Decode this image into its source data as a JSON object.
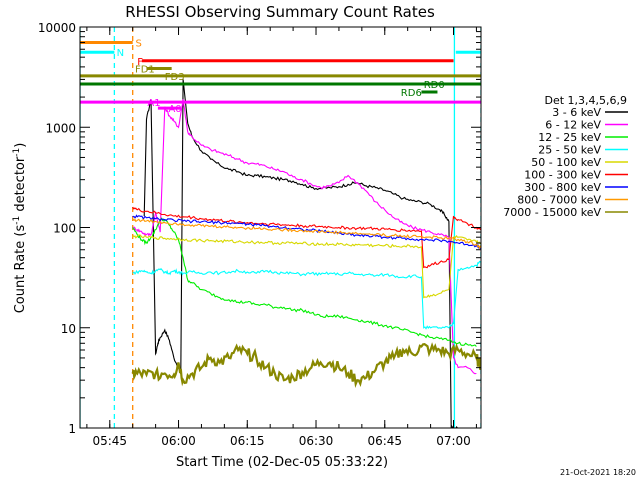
{
  "chart_data": {
    "type": "line",
    "title": "RHESSI Observing Summary Count Rates",
    "xlabel": "Start Time (02-Dec-05 05:33:22)",
    "ylabel_main": "Count Rate (s",
    "ylabel_sup1": "-1",
    "ylabel_mid": " detector",
    "ylabel_sup2": "-1",
    "ylabel_end": ")",
    "x_range_minutes": [
      5.5,
      93
    ],
    "yscale": "log",
    "ylim": [
      1,
      10000
    ],
    "x_ticks": [
      {
        "label": "05:45",
        "t": 12
      },
      {
        "label": "06:00",
        "t": 27
      },
      {
        "label": "06:15",
        "t": 42
      },
      {
        "label": "06:30",
        "t": 57
      },
      {
        "label": "06:45",
        "t": 72
      },
      {
        "label": "07:00",
        "t": 87
      }
    ],
    "y_ticks": [
      {
        "label": "1",
        "v": 1
      },
      {
        "label": "10",
        "v": 10
      },
      {
        "label": "100",
        "v": 100
      },
      {
        "label": "1000",
        "v": 1000
      },
      {
        "label": "10000",
        "v": 10000
      }
    ],
    "legend": {
      "title": "Det 1,3,4,5,6,9",
      "entries": [
        {
          "label": "3 - 6 keV",
          "color": "#000000"
        },
        {
          "label": "6 - 12 keV",
          "color": "#ff00ff"
        },
        {
          "label": "12 - 25 keV",
          "color": "#00ee00"
        },
        {
          "label": "25 - 50 keV",
          "color": "#00ffff"
        },
        {
          "label": "50 - 100 keV",
          "color": "#d8d800"
        },
        {
          "label": "100 - 300 keV",
          "color": "#ff0000"
        },
        {
          "label": "300 - 800 keV",
          "color": "#0000ff"
        },
        {
          "label": "800 - 7000 keV",
          "color": "#ff9900"
        },
        {
          "label": "7000 - 15000 keV",
          "color": "#888800"
        }
      ]
    },
    "state_bars": [
      {
        "label": "S",
        "color": "#ff8800",
        "t0": 5.5,
        "t1": 17,
        "v": 7000,
        "label_t": 17.6
      },
      {
        "label": "N",
        "color": "#00ffff",
        "t0": 5.5,
        "t1": 13,
        "v": 5600,
        "label_t": 13.5
      },
      {
        "label": "N",
        "color": "#00ffff",
        "t0": 87.5,
        "t1": 93,
        "v": 5600,
        "label_t": -1
      },
      {
        "label": "F",
        "color": "#ff0000",
        "t0": 19,
        "t1": 87,
        "v": 4600,
        "label_t": 18.0
      },
      {
        "label": "FD1",
        "color": "#888800",
        "t0": 20,
        "t1": 25.5,
        "v": 3850,
        "label_t": 17.5
      },
      {
        "label": "FD3",
        "color": "#888800",
        "t0": 5.5,
        "t1": 93,
        "v": 3250,
        "label_t": 24.0
      },
      {
        "label": "RD0",
        "color": "#007700",
        "t0": 5.5,
        "t1": 93,
        "v": 2700,
        "label_t": 80.5
      },
      {
        "label": "RD6",
        "color": "#007700",
        "t0": 80,
        "t1": 83.5,
        "v": 2250,
        "label_t": 75.5
      },
      {
        "label": "A1",
        "color": "#ff00ff",
        "t0": 5.5,
        "t1": 93,
        "v": 1780,
        "label_t": 20.2
      },
      {
        "label": "A0",
        "color": "#ff00ff",
        "t0": 22.5,
        "t1": 27.5,
        "v": 1550,
        "label_t": 24.8
      }
    ],
    "vlines": [
      {
        "t": 5.5,
        "color": "#00ffff",
        "style": "solid"
      },
      {
        "t": 13,
        "color": "#00ffff",
        "style": "dashed"
      },
      {
        "t": 17,
        "color": "#ff8800",
        "style": "dashed"
      },
      {
        "t": 87.2,
        "color": "#00ffff",
        "style": "solid"
      },
      {
        "t": 93,
        "color": "#00ffff",
        "style": "dashed"
      }
    ],
    "series": [
      {
        "name": "3 - 6 keV",
        "color": "#000000",
        "t": [
          19.5,
          20,
          21,
          22,
          22.5,
          23,
          24,
          25,
          26,
          27,
          27.5,
          28,
          29,
          30,
          32,
          34,
          36,
          38,
          40,
          42,
          44,
          46,
          48,
          50,
          52,
          54,
          56,
          58,
          60,
          62,
          64,
          66,
          68,
          70,
          72,
          74,
          76,
          78,
          80,
          82,
          84,
          85,
          86,
          86.5,
          87,
          88
        ],
        "v": [
          130,
          1200,
          1900,
          5.5,
          7,
          8,
          9.5,
          7.5,
          5,
          4,
          3.5,
          3000,
          1100,
          800,
          580,
          480,
          420,
          380,
          360,
          330,
          330,
          320,
          310,
          300,
          290,
          270,
          250,
          245,
          250,
          255,
          270,
          280,
          260,
          250,
          235,
          215,
          195,
          185,
          180,
          170,
          150,
          135,
          115,
          1,
          1,
          1
        ]
      },
      {
        "name": "6 - 12 keV",
        "color": "#ff00ff",
        "t": [
          17,
          18,
          19,
          20,
          21,
          22,
          23,
          24,
          25,
          26,
          27,
          28,
          29,
          30,
          32,
          34,
          36,
          38,
          40,
          42,
          44,
          46,
          48,
          50,
          52,
          54,
          56,
          58,
          60,
          62,
          64,
          66,
          68,
          70,
          72,
          74,
          76,
          78,
          80,
          82,
          84,
          86,
          87,
          88,
          90,
          92
        ],
        "v": [
          100,
          95,
          90,
          85,
          85,
          140,
          90,
          1600,
          1300,
          1150,
          1000,
          1900,
          900,
          800,
          660,
          600,
          560,
          520,
          480,
          440,
          430,
          410,
          380,
          360,
          320,
          300,
          270,
          250,
          260,
          280,
          330,
          280,
          230,
          180,
          150,
          125,
          110,
          100,
          95,
          90,
          85,
          80,
          5,
          4,
          4,
          3.5
        ]
      },
      {
        "name": "12 - 25 keV",
        "color": "#00ee00",
        "t": [
          17,
          18,
          19,
          20,
          21,
          22,
          23,
          24,
          25,
          26,
          27,
          28,
          29,
          30,
          32,
          34,
          36,
          38,
          40,
          42,
          44,
          46,
          48,
          50,
          52,
          54,
          56,
          58,
          60,
          62,
          64,
          66,
          68,
          70,
          72,
          74,
          76,
          78,
          80,
          82,
          84,
          86,
          88,
          90,
          92
        ],
        "v": [
          100,
          85,
          75,
          70,
          80,
          95,
          120,
          120,
          105,
          90,
          75,
          50,
          30,
          28,
          24,
          22,
          20,
          19,
          18,
          18,
          17,
          17,
          16,
          16,
          15,
          15,
          14,
          13,
          13,
          13,
          12.5,
          12,
          11.5,
          11,
          10.5,
          10,
          9.5,
          9,
          8.5,
          8,
          7.8,
          7.5,
          7,
          6.8,
          6.5
        ]
      },
      {
        "name": "25 - 50 keV",
        "color": "#00ffff",
        "t": [
          17,
          18,
          19,
          20,
          21,
          22,
          23,
          24,
          25,
          26,
          27,
          28,
          30,
          32,
          34,
          36,
          38,
          40,
          42,
          44,
          46,
          48,
          50,
          52,
          54,
          56,
          58,
          60,
          62,
          64,
          66,
          68,
          70,
          72,
          74,
          76,
          78,
          80,
          80.5,
          82,
          84,
          86,
          87,
          88,
          90,
          92,
          93
        ],
        "v": [
          35,
          36,
          37,
          36,
          35,
          37,
          38,
          36,
          35,
          37,
          36,
          35,
          36,
          35,
          36,
          35,
          36,
          37,
          36,
          35,
          37,
          36,
          35,
          35,
          34,
          35,
          34,
          35,
          34,
          35,
          34,
          34,
          33,
          34,
          33,
          32,
          33,
          32,
          10,
          10,
          10,
          10,
          11,
          38,
          40,
          42,
          46
        ]
      },
      {
        "name": "50 - 100 keV",
        "color": "#d8d800",
        "t": [
          17,
          18,
          20,
          22,
          24,
          26,
          28,
          30,
          32,
          34,
          36,
          38,
          40,
          42,
          44,
          46,
          48,
          50,
          52,
          54,
          56,
          58,
          60,
          62,
          64,
          66,
          68,
          70,
          72,
          74,
          76,
          78,
          80,
          80.5,
          82,
          84,
          86,
          87,
          88,
          90,
          92,
          93
        ],
        "v": [
          80,
          82,
          80,
          79,
          78,
          77,
          76,
          75,
          74,
          74,
          73,
          73,
          72,
          72,
          71,
          71,
          70,
          70,
          70,
          69,
          69,
          68,
          68,
          68,
          67,
          67,
          67,
          66,
          66,
          65,
          65,
          65,
          64,
          20,
          21,
          22,
          24,
          80,
          80,
          75,
          72,
          70
        ]
      },
      {
        "name": "100 - 300 keV",
        "color": "#ff0000",
        "t": [
          17,
          18,
          20,
          22,
          24,
          26,
          28,
          30,
          32,
          34,
          36,
          38,
          40,
          42,
          44,
          46,
          48,
          50,
          52,
          54,
          56,
          58,
          60,
          62,
          64,
          66,
          68,
          70,
          72,
          74,
          76,
          78,
          80,
          80.5,
          82,
          84,
          86,
          87,
          88,
          90,
          92,
          93
        ],
        "v": [
          160,
          150,
          145,
          140,
          135,
          130,
          128,
          126,
          122,
          120,
          118,
          115,
          113,
          112,
          110,
          109,
          108,
          106,
          105,
          104,
          103,
          102,
          101,
          100,
          99,
          98,
          98,
          97,
          96,
          95,
          94,
          93,
          92,
          40,
          42,
          45,
          48,
          130,
          120,
          110,
          100,
          98
        ]
      },
      {
        "name": "300 - 800 keV",
        "color": "#0000ff",
        "t": [
          17,
          18,
          20,
          22,
          24,
          26,
          28,
          30,
          32,
          34,
          36,
          38,
          40,
          42,
          44,
          46,
          48,
          50,
          52,
          54,
          56,
          58,
          60,
          62,
          64,
          66,
          68,
          70,
          72,
          74,
          76,
          78,
          80,
          82,
          84,
          86,
          88,
          90,
          92,
          93
        ],
        "v": [
          130,
          128,
          125,
          122,
          120,
          118,
          116,
          115,
          114,
          113,
          112,
          111,
          110,
          108,
          106,
          104,
          102,
          100,
          98,
          96,
          94,
          92,
          90,
          88,
          86,
          84,
          83,
          82,
          80,
          79,
          78,
          77,
          76,
          75,
          74,
          73,
          70,
          68,
          66,
          64
        ]
      },
      {
        "name": "800 - 7000 keV",
        "color": "#ff9900",
        "t": [
          17,
          18,
          20,
          22,
          24,
          26,
          28,
          30,
          32,
          34,
          36,
          38,
          40,
          42,
          44,
          46,
          48,
          50,
          52,
          54,
          56,
          58,
          60,
          62,
          64,
          66,
          68,
          70,
          72,
          74,
          76,
          78,
          80,
          82,
          84,
          86,
          88,
          90,
          92,
          93
        ],
        "v": [
          120,
          118,
          116,
          115,
          112,
          110,
          108,
          106,
          104,
          103,
          102,
          101,
          100,
          99,
          98,
          97,
          96,
          95,
          94,
          93,
          92,
          91,
          90,
          89,
          88,
          87,
          86,
          85,
          84,
          83,
          82,
          82,
          81,
          80,
          79,
          78,
          76,
          72,
          68,
          62
        ]
      },
      {
        "name": "7000 - 15000 keV",
        "color": "#888800",
        "t": [
          17,
          18,
          20,
          22,
          24,
          26,
          27,
          28,
          30,
          32,
          34,
          36,
          38,
          40,
          42,
          44,
          46,
          48,
          50,
          52,
          54,
          56,
          58,
          60,
          62,
          64,
          66,
          68,
          70,
          72,
          74,
          76,
          78,
          80,
          82,
          84,
          86,
          88,
          90,
          92,
          93
        ],
        "v": [
          3.5,
          3.5,
          3.4,
          3.5,
          3.5,
          3.4,
          4.5,
          3,
          3.5,
          4,
          5,
          4.5,
          5,
          6,
          5.5,
          5,
          4,
          3.5,
          3,
          3.2,
          3.6,
          4,
          4.5,
          4.5,
          4,
          3.5,
          3,
          3.2,
          3.8,
          4.5,
          5,
          6,
          5.5,
          6.5,
          6,
          6,
          5.5,
          6,
          5.5,
          5,
          4
        ]
      }
    ],
    "footer_date": "21-Oct-2021 18:20"
  }
}
